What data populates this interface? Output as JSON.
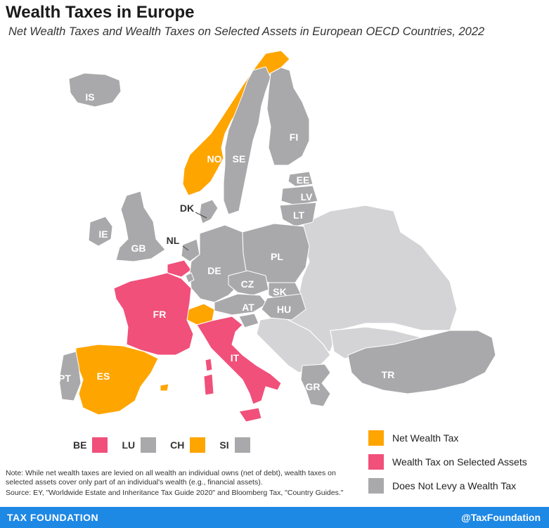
{
  "title": "Wealth Taxes in Europe",
  "subtitle": "Net Wealth Taxes and Wealth Taxes on Selected Assets in European OECD Countries, 2022",
  "colors": {
    "net_wealth": "#ffa500",
    "selected_assets": "#f0507a",
    "no_tax": "#a9a9ab",
    "non_oecd": "#d4d4d6"
  },
  "map_labels": {
    "IS": "IS",
    "NO": "NO",
    "SE": "SE",
    "FI": "FI",
    "EE": "EE",
    "LV": "LV",
    "LT": "LT",
    "DK": "DK",
    "IE": "IE",
    "GB": "GB",
    "NL": "NL",
    "DE": "DE",
    "PL": "PL",
    "CZ": "CZ",
    "SK": "SK",
    "AT": "AT",
    "HU": "HU",
    "FR": "FR",
    "IT": "IT",
    "ES": "ES",
    "PT": "PT",
    "GR": "GR",
    "TR": "TR"
  },
  "small_countries": [
    {
      "code": "BE",
      "category": "selected_assets"
    },
    {
      "code": "LU",
      "category": "no_tax"
    },
    {
      "code": "CH",
      "category": "net_wealth"
    },
    {
      "code": "SI",
      "category": "no_tax"
    }
  ],
  "legend": [
    {
      "label": "Net Wealth Tax",
      "category": "net_wealth"
    },
    {
      "label": "Wealth Tax on Selected Assets",
      "category": "selected_assets"
    },
    {
      "label": "Does Not Levy a Wealth Tax",
      "category": "no_tax"
    }
  ],
  "note": "Note: While net wealth taxes are levied on all wealth an individual owns (net of debt), wealth taxes on selected assets cover only part of an individual's wealth (e.g., financial assets).",
  "source": "Source: EY, \"Worldwide Estate and Inheritance Tax Guide 2020\" and Bloomberg Tax, \"Country Guides.\"",
  "footer": {
    "left": "TAX FOUNDATION",
    "right": "@TaxFoundation"
  }
}
